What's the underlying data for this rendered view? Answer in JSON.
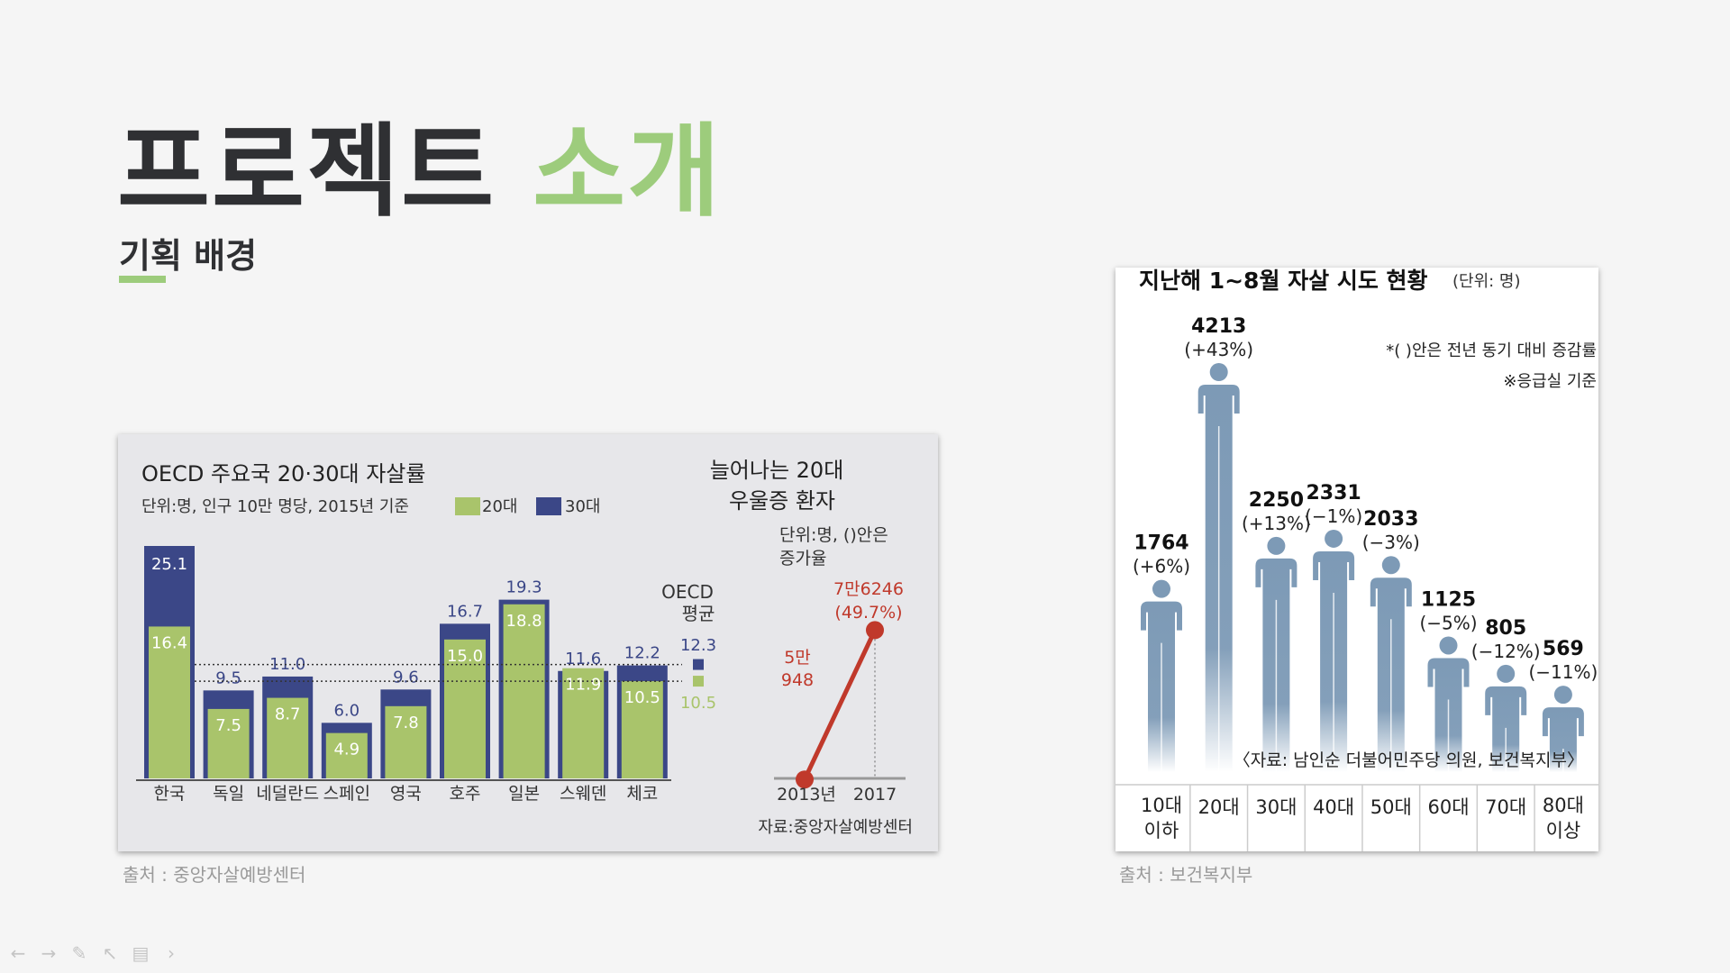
{
  "slide": {
    "title_main": "프로젝트",
    "title_highlight": "소개",
    "subtitle": "기획 배경"
  },
  "left_figure": {
    "caption": "출처 : 중앙자살예방센터"
  },
  "right_figure": {
    "caption": "출처 : 보건복지부"
  },
  "toolbar": {
    "items": [
      {
        "name": "prev-arrow-icon",
        "glyph": "←"
      },
      {
        "name": "next-arrow-icon",
        "glyph": "→"
      },
      {
        "name": "pen-icon",
        "glyph": "✎"
      },
      {
        "name": "pointer-icon",
        "glyph": "↖"
      },
      {
        "name": "slides-icon",
        "glyph": "▤"
      },
      {
        "name": "more-icon",
        "glyph": "›"
      }
    ]
  },
  "colors": {
    "accent": "#9dcc7c",
    "bar_20s": "#a9c46b",
    "bar_30s": "#3b4787",
    "figure_blue": "#7d9ab6",
    "red": "#c0392b"
  },
  "chart_data": [
    {
      "type": "bar",
      "title": "OECD 주요국 20·30대 자살률",
      "subtitle": "단위:명, 인구 10만 명당, 2015년 기준",
      "legend": [
        "20대",
        "30대"
      ],
      "categories": [
        "한국",
        "독일",
        "네덜란드",
        "스페인",
        "영국",
        "호주",
        "일본",
        "스웨덴",
        "체코"
      ],
      "series": [
        {
          "name": "20대",
          "values": [
            16.4,
            7.5,
            8.7,
            4.9,
            7.8,
            15.0,
            18.8,
            11.9,
            10.5
          ],
          "labels": [
            "16.4",
            "7.5",
            "8.7",
            "4.9",
            "7.8",
            "15.0",
            "18.8",
            "11.9",
            "10.5"
          ]
        },
        {
          "name": "30대",
          "values": [
            25.1,
            9.5,
            11.0,
            6.0,
            9.6,
            16.7,
            19.3,
            11.6,
            12.2
          ],
          "labels": [
            "25.1",
            "9.5",
            "11.0",
            "6.0",
            "9.6",
            "16.7",
            "19.3",
            "11.6",
            "12.2"
          ]
        }
      ],
      "oecd_average": {
        "label_line1": "OECD",
        "label_line2": "평균",
        "v30": 12.3,
        "v20": 10.5,
        "v30_label": "12.3",
        "v20_label": "10.5"
      },
      "ylim": [
        0,
        26
      ]
    },
    {
      "type": "line",
      "title_line1": "늘어나는 20대",
      "title_line2": "우울증 환자",
      "note_line1": "단위:명, ()안은",
      "note_line2": "증가율",
      "x": [
        "2013년",
        "2017"
      ],
      "values": [
        50948,
        76246
      ],
      "labels": [
        {
          "line1": "5만",
          "line2": "948"
        },
        {
          "line1": "7만6246",
          "line2": "(49.7%)"
        }
      ],
      "ylim": [
        40000,
        85000
      ],
      "source": "자료:중앙자살예방센터"
    },
    {
      "type": "bar",
      "title": "지난해 1~8월 자살 시도 현황",
      "unit": "(단위: 명)",
      "note_line1": "*( )안은 전년 동기 대비 증감률",
      "note_line2": "※응급실 기준",
      "categories": [
        {
          "line1": "10대",
          "line2": "이하"
        },
        {
          "line1": "20대",
          "line2": ""
        },
        {
          "line1": "30대",
          "line2": ""
        },
        {
          "line1": "40대",
          "line2": ""
        },
        {
          "line1": "50대",
          "line2": ""
        },
        {
          "line1": "60대",
          "line2": ""
        },
        {
          "line1": "70대",
          "line2": ""
        },
        {
          "line1": "80대",
          "line2": "이상"
        }
      ],
      "values": [
        1764,
        4213,
        2250,
        2331,
        2033,
        1125,
        805,
        569
      ],
      "value_labels": [
        "1764",
        "4213",
        "2250",
        "2331",
        "2033",
        "1125",
        "805",
        "569"
      ],
      "changes": [
        "(+6%)",
        "(+43%)",
        "(+13%)",
        "(−1%)",
        "(−3%)",
        "(−5%)",
        "(−12%)",
        "(−11%)"
      ],
      "source": "〈자료: 남인순 더불어민주당 의원, 보건복지부〉",
      "ylim": [
        0,
        4500
      ]
    }
  ]
}
